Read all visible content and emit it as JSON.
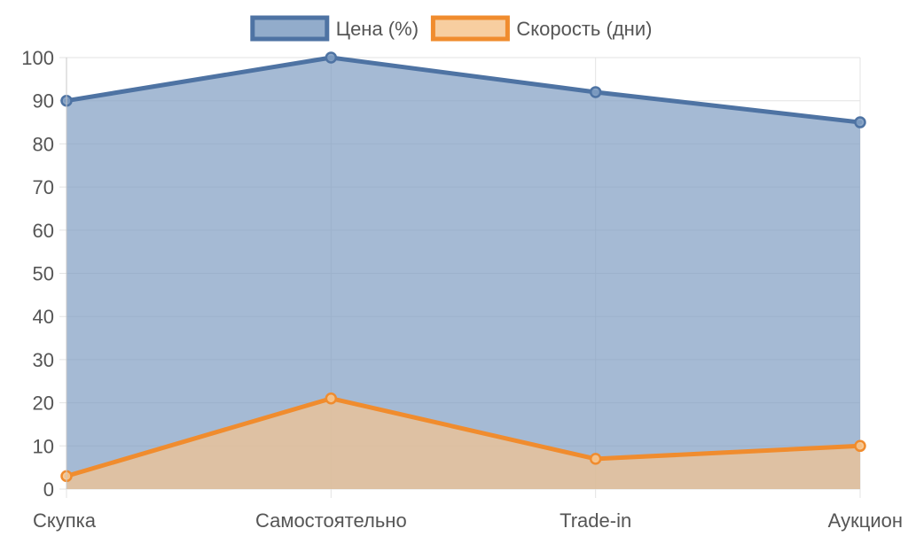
{
  "chart_data": {
    "type": "area",
    "categories": [
      "Скупка",
      "Самостоятельно",
      "Trade-in",
      "Аукцион"
    ],
    "series": [
      {
        "name": "Цена (%)",
        "values": [
          90,
          100,
          92,
          85
        ],
        "color": "#4e73a3",
        "fill": "#7f9dc2"
      },
      {
        "name": "Скорость (дни)",
        "values": [
          3,
          21,
          7,
          10
        ],
        "color": "#f08c2e",
        "fill": "#f6c58f"
      }
    ],
    "ylim": [
      0,
      100
    ],
    "yticks": [
      0,
      10,
      20,
      30,
      40,
      50,
      60,
      70,
      80,
      90,
      100
    ],
    "grid": true,
    "legend": "top-center",
    "title": "",
    "xlabel": "",
    "ylabel": ""
  }
}
